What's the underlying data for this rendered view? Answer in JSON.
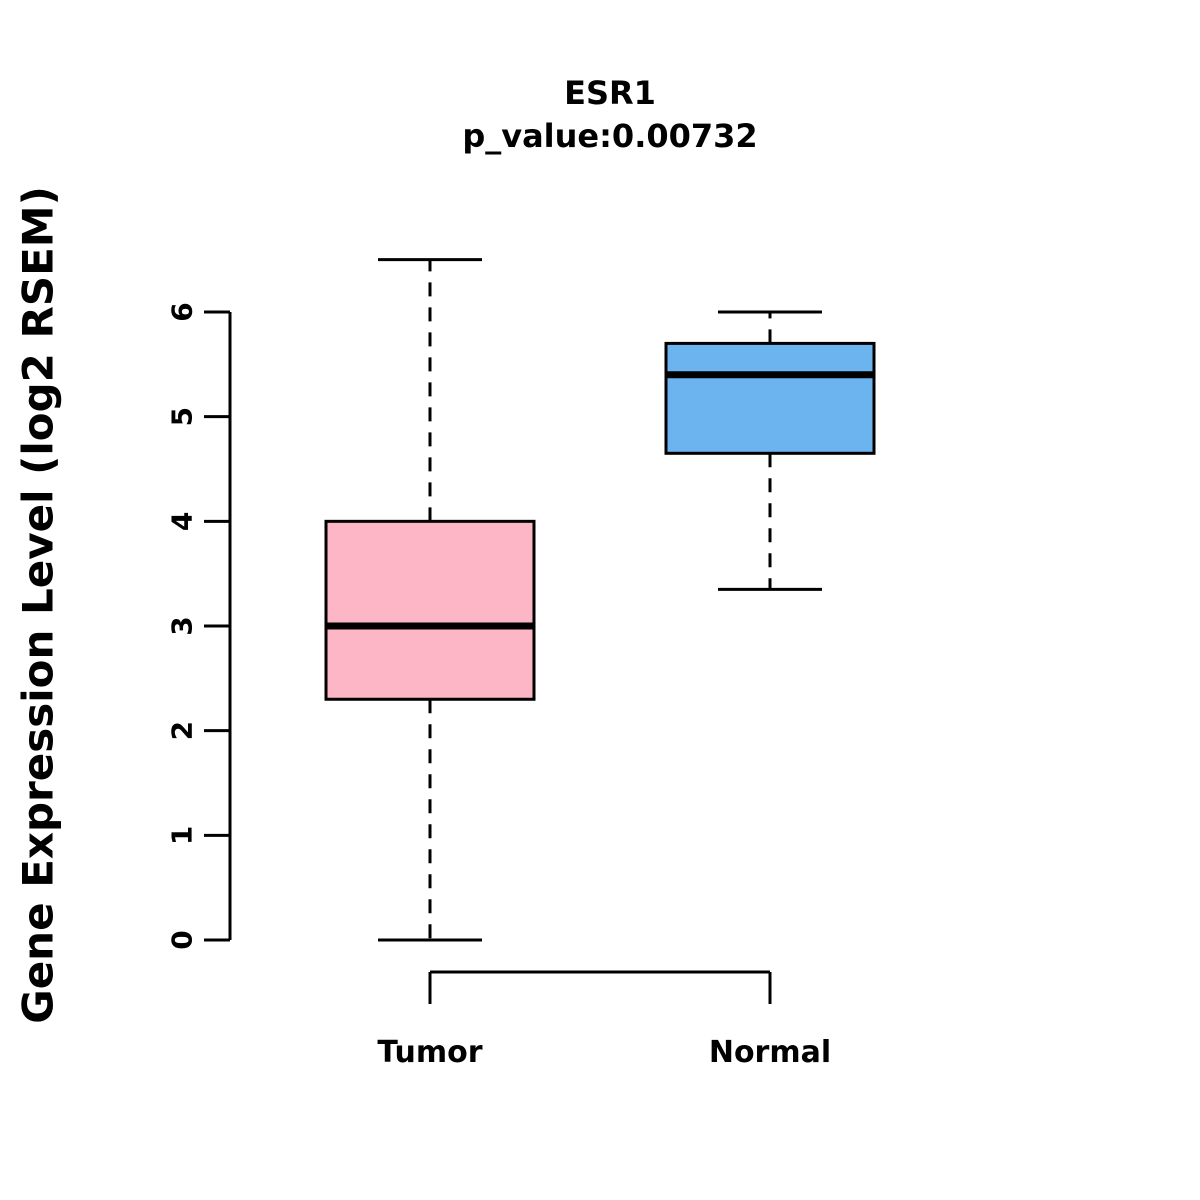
{
  "title": "ESR1",
  "subtitle": "p_value:0.00732",
  "ylabel": "Gene Expression Level (log2 RSEM)",
  "chart_data": {
    "type": "boxplot",
    "title": "ESR1",
    "subtitle": "p_value:0.00732",
    "ylabel": "Gene Expression Level (log2 RSEM)",
    "xlabel": "",
    "categories": [
      "Tumor",
      "Normal"
    ],
    "yticks": [
      0,
      1,
      2,
      3,
      4,
      5,
      6
    ],
    "ylim": [
      0,
      6
    ],
    "grid": false,
    "legend": "none",
    "series": [
      {
        "name": "Tumor",
        "color": "#FDB6C5",
        "border_color": "#000000",
        "whisker_low": 0.0,
        "q1": 2.3,
        "median": 3.0,
        "q3": 4.0,
        "whisker_high": 6.5
      },
      {
        "name": "Normal",
        "color": "#6CB4F0",
        "border_color": "#000000",
        "whisker_low": 3.35,
        "q1": 4.65,
        "median": 5.4,
        "q3": 5.7,
        "whisker_high": 6.0
      }
    ]
  }
}
